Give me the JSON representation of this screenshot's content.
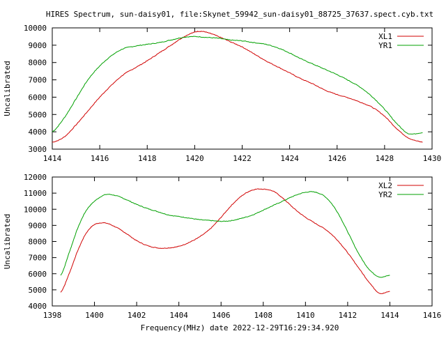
{
  "title": "HIRES Spectrum, sun-daisy01, file:Skynet_59942_sun-daisy01_88725_37637.spect.cyb.txt",
  "xlabel": "Frequency(MHz) date 2022-12-29T16:29:34.920",
  "colors": {
    "red": "#d00000",
    "green": "#00a000",
    "axis": "#000000"
  },
  "chart_data": [
    {
      "type": "line",
      "ylabel": "Uncalibrated",
      "xlim": [
        1414,
        1430
      ],
      "ylim": [
        3000,
        10000
      ],
      "xticks": [
        1414,
        1416,
        1418,
        1420,
        1422,
        1424,
        1426,
        1428,
        1430
      ],
      "yticks": [
        3000,
        4000,
        5000,
        6000,
        7000,
        8000,
        9000,
        10000
      ],
      "legend_position": "top-right",
      "series": [
        {
          "name": "XL1",
          "color": "#d00000",
          "x": [
            1414.0,
            1414.5,
            1415.0,
            1415.5,
            1416.0,
            1416.5,
            1417.0,
            1417.5,
            1418.0,
            1418.5,
            1419.0,
            1419.5,
            1420.0,
            1420.3,
            1420.6,
            1421.0,
            1421.5,
            1422.0,
            1422.5,
            1423.0,
            1423.5,
            1424.0,
            1424.5,
            1425.0,
            1425.5,
            1426.0,
            1426.5,
            1427.0,
            1427.5,
            1428.0,
            1428.5,
            1429.0,
            1429.6
          ],
          "y": [
            3400,
            3700,
            4400,
            5200,
            6000,
            6700,
            7300,
            7700,
            8100,
            8550,
            9000,
            9450,
            9750,
            9800,
            9700,
            9500,
            9200,
            8900,
            8500,
            8100,
            7750,
            7400,
            7050,
            6750,
            6400,
            6150,
            5950,
            5700,
            5400,
            4900,
            4200,
            3650,
            3400
          ]
        },
        {
          "name": "YR1",
          "color": "#00a000",
          "x": [
            1414.0,
            1414.5,
            1415.0,
            1415.5,
            1416.0,
            1416.5,
            1417.0,
            1417.5,
            1418.0,
            1418.5,
            1419.0,
            1419.5,
            1420.0,
            1420.5,
            1421.0,
            1421.5,
            1422.0,
            1422.5,
            1423.0,
            1423.5,
            1424.0,
            1424.5,
            1425.0,
            1425.5,
            1426.0,
            1426.5,
            1427.0,
            1427.5,
            1428.0,
            1428.5,
            1429.0,
            1429.6
          ],
          "y": [
            4000,
            4800,
            5900,
            7000,
            7800,
            8400,
            8800,
            8950,
            9050,
            9150,
            9300,
            9450,
            9500,
            9450,
            9400,
            9300,
            9250,
            9150,
            9050,
            8850,
            8550,
            8200,
            7900,
            7600,
            7300,
            6950,
            6550,
            6000,
            5300,
            4500,
            3900,
            3950
          ]
        }
      ]
    },
    {
      "type": "line",
      "ylabel": "Uncalibrated",
      "xlim": [
        1398,
        1416
      ],
      "ylim": [
        4000,
        12000
      ],
      "xticks": [
        1398,
        1400,
        1402,
        1404,
        1406,
        1408,
        1410,
        1412,
        1414,
        1416
      ],
      "yticks": [
        4000,
        5000,
        6000,
        7000,
        8000,
        9000,
        10000,
        11000,
        12000
      ],
      "legend_position": "top-right",
      "series": [
        {
          "name": "XL2",
          "color": "#d00000",
          "x": [
            1398.4,
            1398.8,
            1399.2,
            1399.6,
            1400.0,
            1400.5,
            1401.0,
            1401.5,
            1402.0,
            1402.5,
            1403.0,
            1403.5,
            1404.0,
            1404.5,
            1405.0,
            1405.5,
            1406.0,
            1406.5,
            1407.0,
            1407.5,
            1408.0,
            1408.5,
            1409.0,
            1409.5,
            1410.0,
            1410.5,
            1411.0,
            1411.5,
            1412.0,
            1412.5,
            1413.0,
            1413.5,
            1414.0
          ],
          "y": [
            4850,
            6000,
            7400,
            8500,
            9050,
            9150,
            8900,
            8500,
            8050,
            7750,
            7600,
            7600,
            7700,
            7950,
            8300,
            8800,
            9500,
            10250,
            10850,
            11200,
            11250,
            11100,
            10600,
            10000,
            9500,
            9100,
            8700,
            8100,
            7300,
            6400,
            5500,
            4800,
            4900
          ]
        },
        {
          "name": "YR2",
          "color": "#00a000",
          "x": [
            1398.4,
            1398.8,
            1399.2,
            1399.6,
            1400.0,
            1400.5,
            1401.0,
            1401.5,
            1402.0,
            1402.5,
            1403.0,
            1403.5,
            1404.0,
            1404.5,
            1405.0,
            1405.5,
            1406.0,
            1406.5,
            1407.0,
            1407.5,
            1408.0,
            1408.5,
            1409.0,
            1409.5,
            1410.0,
            1410.5,
            1411.0,
            1411.5,
            1412.0,
            1412.5,
            1413.0,
            1413.5,
            1414.0
          ],
          "y": [
            5900,
            7300,
            8800,
            9900,
            10500,
            10900,
            10850,
            10600,
            10300,
            10050,
            9850,
            9650,
            9550,
            9450,
            9350,
            9300,
            9250,
            9300,
            9450,
            9650,
            9950,
            10250,
            10550,
            10850,
            11050,
            11050,
            10700,
            9850,
            8600,
            7300,
            6300,
            5800,
            5900
          ]
        }
      ]
    }
  ]
}
